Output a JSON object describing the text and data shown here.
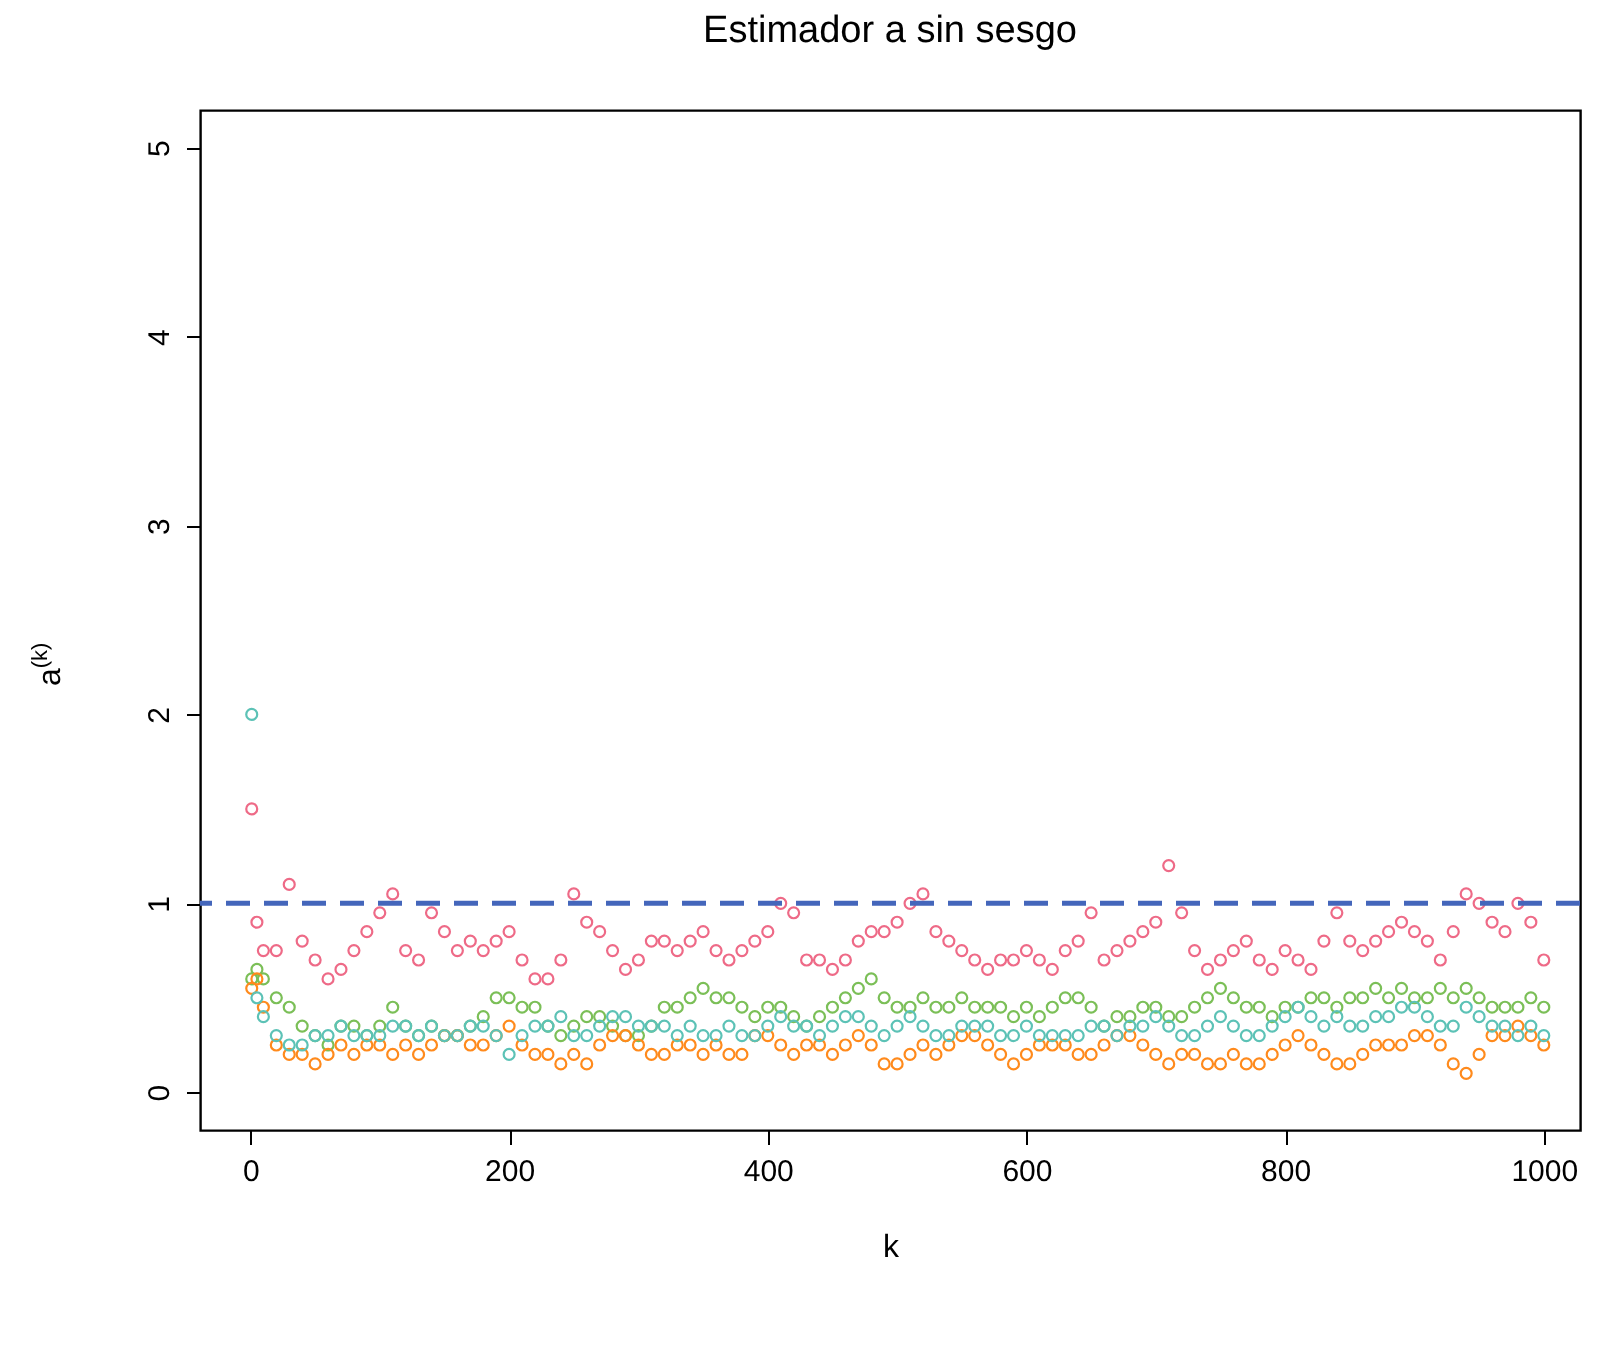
{
  "chart_data": {
    "type": "scatter",
    "title": "Estimador a sin sesgo",
    "xlabel": "k",
    "ylabel": "a$^{(k)}$",
    "x": [
      1,
      5,
      10,
      20,
      30,
      40,
      50,
      60,
      70,
      80,
      90,
      100,
      110,
      120,
      130,
      140,
      150,
      160,
      170,
      180,
      190,
      200,
      210,
      220,
      230,
      240,
      250,
      260,
      270,
      280,
      290,
      300,
      310,
      320,
      330,
      340,
      350,
      360,
      370,
      380,
      390,
      400,
      410,
      420,
      430,
      440,
      450,
      460,
      470,
      480,
      490,
      500,
      510,
      520,
      530,
      540,
      550,
      560,
      570,
      580,
      590,
      600,
      610,
      620,
      630,
      640,
      650,
      660,
      670,
      680,
      690,
      700,
      710,
      720,
      730,
      740,
      750,
      760,
      770,
      780,
      790,
      800,
      810,
      820,
      830,
      840,
      850,
      860,
      870,
      880,
      890,
      900,
      910,
      920,
      930,
      940,
      950,
      960,
      970,
      980,
      990,
      1000
    ],
    "series": [
      {
        "color": "#ee6a87",
        "values": [
          1.5,
          0.9,
          0.75,
          0.75,
          1.1,
          0.8,
          0.7,
          0.6,
          0.65,
          0.75,
          0.85,
          0.95,
          1.05,
          0.75,
          0.7,
          0.95,
          0.85,
          0.75,
          0.8,
          0.75,
          0.8,
          0.85,
          0.7,
          0.6,
          0.6,
          0.7,
          1.05,
          0.9,
          0.85,
          0.75,
          0.65,
          0.7,
          0.8,
          0.8,
          0.75,
          0.8,
          0.85,
          0.75,
          0.7,
          0.75,
          0.8,
          0.85,
          1.0,
          0.95,
          0.7,
          0.7,
          0.65,
          0.7,
          0.8,
          0.85,
          0.85,
          0.9,
          1.0,
          1.05,
          0.85,
          0.8,
          0.75,
          0.7,
          0.65,
          0.7,
          0.7,
          0.75,
          0.7,
          0.65,
          0.75,
          0.8,
          0.95,
          0.7,
          0.75,
          0.8,
          0.85,
          0.9,
          1.2,
          0.95,
          0.75,
          0.65,
          0.7,
          0.75,
          0.8,
          0.7,
          0.65,
          0.75,
          0.7,
          0.65,
          0.8,
          0.95,
          0.8,
          0.75,
          0.8,
          0.85,
          0.9,
          0.85,
          0.8,
          0.7,
          0.85,
          1.05,
          1.0,
          0.9,
          0.85,
          1.0,
          0.9,
          0.7
        ]
      },
      {
        "color": "#7bbf57",
        "values": [
          0.6,
          0.65,
          0.6,
          0.5,
          0.45,
          0.35,
          0.3,
          0.25,
          0.35,
          0.35,
          0.3,
          0.35,
          0.45,
          0.35,
          0.3,
          0.35,
          0.3,
          0.3,
          0.35,
          0.4,
          0.5,
          0.5,
          0.45,
          0.45,
          0.35,
          0.3,
          0.35,
          0.4,
          0.4,
          0.35,
          0.3,
          0.3,
          0.35,
          0.45,
          0.45,
          0.5,
          0.55,
          0.5,
          0.5,
          0.45,
          0.4,
          0.45,
          0.45,
          0.4,
          0.35,
          0.4,
          0.45,
          0.5,
          0.55,
          0.6,
          0.5,
          0.45,
          0.45,
          0.5,
          0.45,
          0.45,
          0.5,
          0.45,
          0.45,
          0.45,
          0.4,
          0.45,
          0.4,
          0.45,
          0.5,
          0.5,
          0.45,
          0.35,
          0.4,
          0.4,
          0.45,
          0.45,
          0.4,
          0.4,
          0.45,
          0.5,
          0.55,
          0.5,
          0.45,
          0.45,
          0.4,
          0.45,
          0.45,
          0.5,
          0.5,
          0.45,
          0.5,
          0.5,
          0.55,
          0.5,
          0.55,
          0.5,
          0.5,
          0.55,
          0.5,
          0.55,
          0.5,
          0.45,
          0.45,
          0.45,
          0.5,
          0.45
        ]
      },
      {
        "color": "#ff8a1c",
        "values": [
          0.55,
          0.6,
          0.45,
          0.25,
          0.2,
          0.2,
          0.15,
          0.2,
          0.25,
          0.2,
          0.25,
          0.25,
          0.2,
          0.25,
          0.2,
          0.25,
          0.3,
          0.3,
          0.25,
          0.25,
          0.3,
          0.35,
          0.25,
          0.2,
          0.2,
          0.15,
          0.2,
          0.15,
          0.25,
          0.3,
          0.3,
          0.25,
          0.2,
          0.2,
          0.25,
          0.25,
          0.2,
          0.25,
          0.2,
          0.2,
          0.3,
          0.3,
          0.25,
          0.2,
          0.25,
          0.25,
          0.2,
          0.25,
          0.3,
          0.25,
          0.15,
          0.15,
          0.2,
          0.25,
          0.2,
          0.25,
          0.3,
          0.3,
          0.25,
          0.2,
          0.15,
          0.2,
          0.25,
          0.25,
          0.25,
          0.2,
          0.2,
          0.25,
          0.3,
          0.3,
          0.25,
          0.2,
          0.15,
          0.2,
          0.2,
          0.15,
          0.15,
          0.2,
          0.15,
          0.15,
          0.2,
          0.25,
          0.3,
          0.25,
          0.2,
          0.15,
          0.15,
          0.2,
          0.25,
          0.25,
          0.25,
          0.3,
          0.3,
          0.25,
          0.15,
          0.1,
          0.2,
          0.3,
          0.3,
          0.35,
          0.3,
          0.25
        ]
      },
      {
        "color": "#5cc2b6",
        "values": [
          2.0,
          0.5,
          0.4,
          0.3,
          0.25,
          0.25,
          0.3,
          0.3,
          0.35,
          0.3,
          0.3,
          0.3,
          0.35,
          0.35,
          0.3,
          0.35,
          0.3,
          0.3,
          0.35,
          0.35,
          0.3,
          0.2,
          0.3,
          0.35,
          0.35,
          0.4,
          0.3,
          0.3,
          0.35,
          0.4,
          0.4,
          0.35,
          0.35,
          0.35,
          0.3,
          0.35,
          0.3,
          0.3,
          0.35,
          0.3,
          0.3,
          0.35,
          0.4,
          0.35,
          0.35,
          0.3,
          0.35,
          0.4,
          0.4,
          0.35,
          0.3,
          0.35,
          0.4,
          0.35,
          0.3,
          0.3,
          0.35,
          0.35,
          0.35,
          0.3,
          0.3,
          0.35,
          0.3,
          0.3,
          0.3,
          0.3,
          0.35,
          0.35,
          0.3,
          0.35,
          0.35,
          0.4,
          0.35,
          0.3,
          0.3,
          0.35,
          0.4,
          0.35,
          0.3,
          0.3,
          0.35,
          0.4,
          0.45,
          0.4,
          0.35,
          0.4,
          0.35,
          0.35,
          0.4,
          0.4,
          0.45,
          0.45,
          0.4,
          0.35,
          0.35,
          0.45,
          0.4,
          0.35,
          0.35,
          0.3,
          0.35,
          0.3
        ]
      }
    ],
    "xlim": [
      -39,
      1028
    ],
    "ylim": [
      -0.2,
      5.2
    ],
    "xticks": [
      0,
      200,
      400,
      600,
      800,
      1000
    ],
    "yticks": [
      0,
      1,
      2,
      3,
      4,
      5
    ],
    "ref_lines": [
      {
        "axis": "y",
        "value": 1,
        "color": "#4466bb",
        "line_style": "dashed"
      }
    ],
    "grid": false,
    "marker": "circle"
  }
}
